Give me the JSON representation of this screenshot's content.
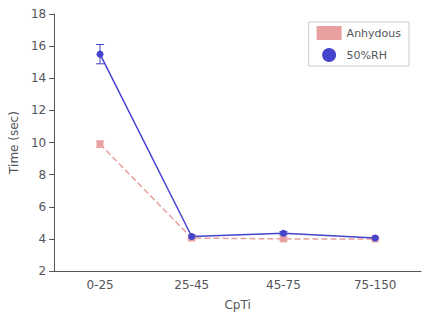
{
  "chart_data": {
    "type": "line",
    "xlabel": "CpTi",
    "ylabel": "Time (sec)",
    "categories": [
      "0-25",
      "25-45",
      "45-75",
      "75-150"
    ],
    "series": [
      {
        "name": "Anhydous",
        "color": "#e8a0a0",
        "marker": "square",
        "line_style": "dashed",
        "values": [
          9.9,
          4.05,
          4.0,
          4.0
        ],
        "yerr": [
          0.2,
          0.1,
          0.1,
          0.05
        ]
      },
      {
        "name": "50%RH",
        "color": "#4444cc",
        "marker": "circle",
        "line_style": "solid",
        "values": [
          15.5,
          4.15,
          4.35,
          4.05
        ],
        "yerr": [
          0.6,
          0.1,
          0.1,
          0.05
        ]
      }
    ],
    "ylim": [
      2,
      18
    ],
    "yticks": [
      2,
      4,
      6,
      8,
      10,
      12,
      14,
      16,
      18
    ],
    "grid": false,
    "legend": "upper right"
  }
}
